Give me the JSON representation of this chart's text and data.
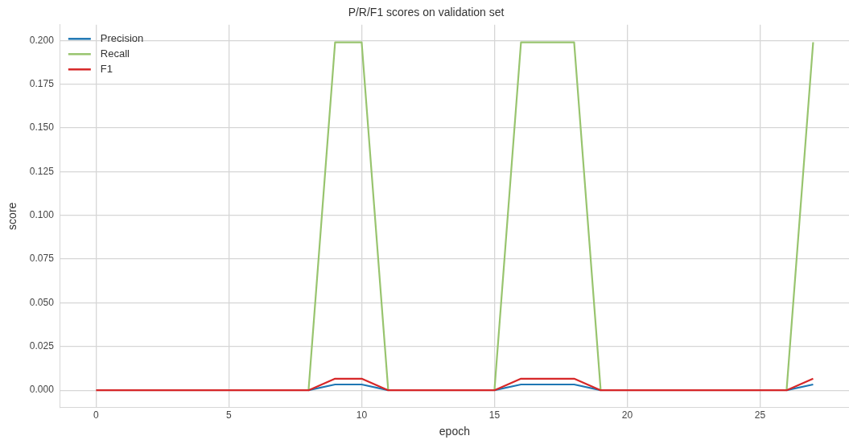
{
  "chart_data": {
    "type": "line",
    "title": "P/R/F1 scores on validation set",
    "xlabel": "epoch",
    "ylabel": "score",
    "x": [
      0,
      1,
      2,
      3,
      4,
      5,
      6,
      7,
      8,
      9,
      10,
      11,
      12,
      13,
      14,
      15,
      16,
      17,
      18,
      19,
      20,
      21,
      22,
      23,
      24,
      25,
      26,
      27
    ],
    "series": [
      {
        "name": "Precision",
        "color": "#1f77b4",
        "values": [
          null,
          null,
          null,
          null,
          null,
          null,
          null,
          null,
          0,
          0.0033,
          0.0033,
          0,
          null,
          null,
          null,
          0,
          0.0033,
          0.0033,
          0.0033,
          0,
          null,
          null,
          null,
          null,
          null,
          null,
          0,
          0.0033
        ]
      },
      {
        "name": "Recall",
        "color": "#98c46e",
        "values": [
          null,
          null,
          null,
          null,
          null,
          null,
          null,
          null,
          0,
          0.199,
          0.199,
          0,
          null,
          null,
          null,
          0,
          0.199,
          0.199,
          0.199,
          0,
          null,
          null,
          null,
          null,
          null,
          null,
          0,
          0.199
        ]
      },
      {
        "name": "F1",
        "color": "#d62728",
        "values": [
          0,
          0,
          0,
          0,
          0,
          0,
          0,
          0,
          0,
          0.0066,
          0.0066,
          0,
          0,
          0,
          0,
          0,
          0.0066,
          0.0066,
          0.0066,
          0,
          0,
          0,
          0,
          0,
          0,
          0,
          0,
          0.0066
        ]
      }
    ],
    "xlim": [
      -1.35,
      28.35
    ],
    "xticks": [
      0,
      5,
      10,
      15,
      20,
      25
    ],
    "ylim": [
      -0.00995,
      0.209
    ],
    "yticks": [
      {
        "value": 0,
        "label": "0.000"
      },
      {
        "value": 0.025,
        "label": "0.025"
      },
      {
        "value": 0.05,
        "label": "0.050"
      },
      {
        "value": 0.075,
        "label": "0.075"
      },
      {
        "value": 0.1,
        "label": "0.100"
      },
      {
        "value": 0.125,
        "label": "0.125"
      },
      {
        "value": 0.15,
        "label": "0.150"
      },
      {
        "value": 0.175,
        "label": "0.175"
      },
      {
        "value": 0.2,
        "label": "0.200"
      }
    ],
    "grid": true,
    "legend": "top left",
    "marker": "none",
    "line_style": "solid"
  }
}
